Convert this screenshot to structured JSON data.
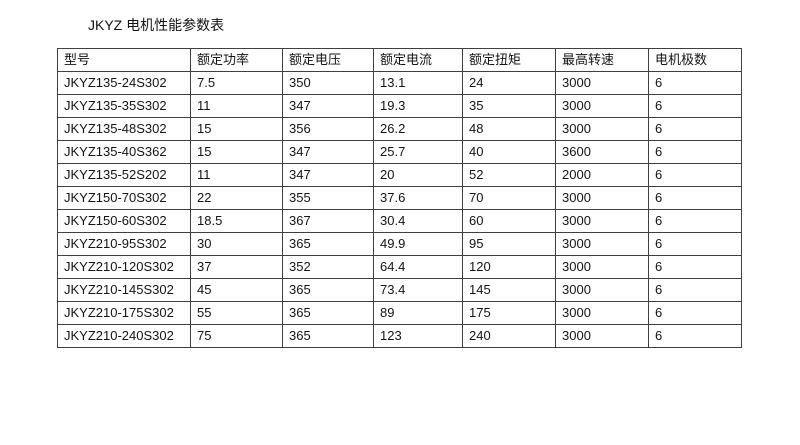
{
  "title": "JKYZ 电机性能参数表",
  "table": {
    "headers": [
      "型号",
      "额定功率",
      "额定电压",
      "额定电流",
      "额定扭矩",
      "最高转速",
      "电机极数"
    ],
    "rows": [
      [
        "JKYZ135-24S302",
        "7.5",
        "350",
        "13.1",
        "24",
        "3000",
        "6"
      ],
      [
        "JKYZ135-35S302",
        "11",
        "347",
        "19.3",
        "35",
        "3000",
        "6"
      ],
      [
        "JKYZ135-48S302",
        "15",
        "356",
        "26.2",
        "48",
        "3000",
        "6"
      ],
      [
        "JKYZ135-40S362",
        "15",
        "347",
        "25.7",
        "40",
        "3600",
        "6"
      ],
      [
        "JKYZ135-52S202",
        "11",
        "347",
        "20",
        "52",
        "2000",
        "6"
      ],
      [
        "JKYZ150-70S302",
        "22",
        "355",
        "37.6",
        "70",
        "3000",
        "6"
      ],
      [
        "JKYZ150-60S302",
        "18.5",
        "367",
        "30.4",
        "60",
        "3000",
        "6"
      ],
      [
        "JKYZ210-95S302",
        "30",
        "365",
        "49.9",
        "95",
        "3000",
        "6"
      ],
      [
        "JKYZ210-120S302",
        "37",
        "352",
        "64.4",
        "120",
        "3000",
        "6"
      ],
      [
        "JKYZ210-145S302",
        "45",
        "365",
        "73.4",
        "145",
        "3000",
        "6"
      ],
      [
        "JKYZ210-175S302",
        "55",
        "365",
        "89",
        "175",
        "3000",
        "6"
      ],
      [
        "JKYZ210-240S302",
        "75",
        "365",
        "123",
        "240",
        "3000",
        "6"
      ]
    ]
  },
  "colors": {
    "background": "#ffffff",
    "border": "#3f3f3f",
    "text": "#141414"
  }
}
